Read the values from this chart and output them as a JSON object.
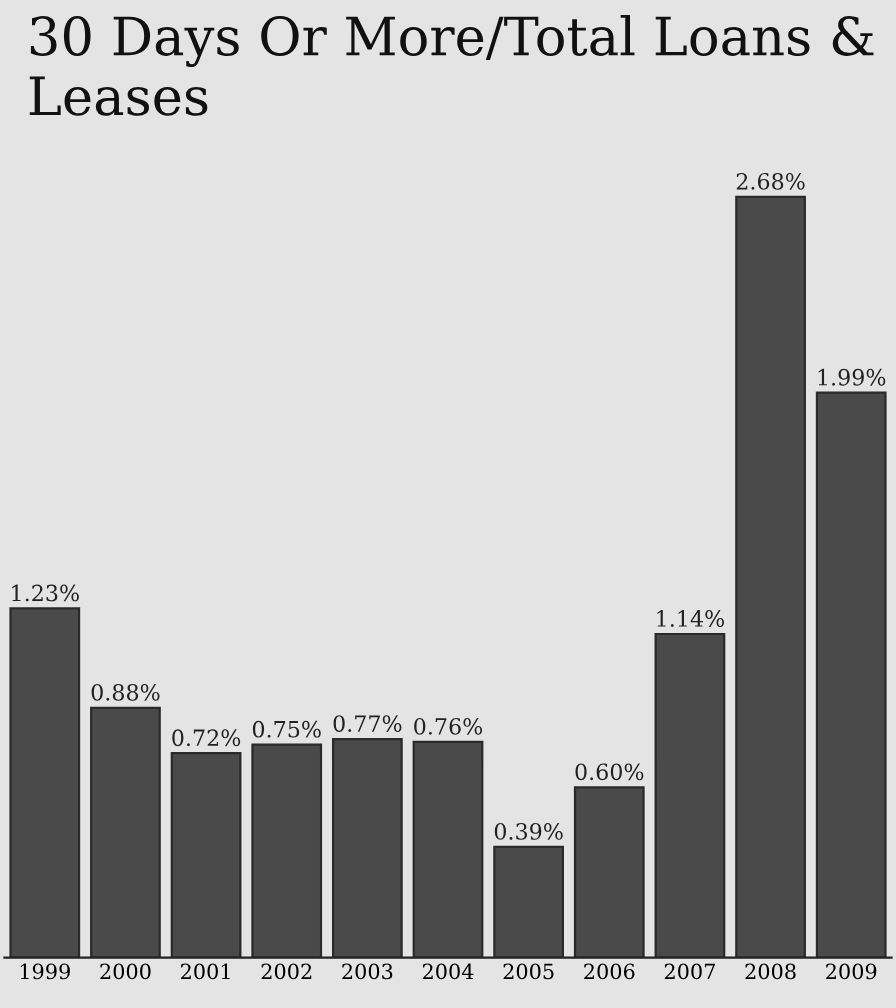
{
  "chart_data": {
    "type": "bar",
    "title": "30 Days Or More/Total Loans & Leases",
    "categories": [
      "1999",
      "2000",
      "2001",
      "2002",
      "2003",
      "2004",
      "2005",
      "2006",
      "2007",
      "2008",
      "2009"
    ],
    "values": [
      1.23,
      0.88,
      0.72,
      0.75,
      0.77,
      0.76,
      0.39,
      0.6,
      1.14,
      2.68,
      1.99
    ],
    "value_labels": [
      "1.23%",
      "0.88%",
      "0.72%",
      "0.75%",
      "0.77%",
      "0.76%",
      "0.39%",
      "0.60%",
      "1.14%",
      "2.68%",
      "1.99%"
    ],
    "color": "#4a4a4a",
    "grid": false,
    "legend": false
  }
}
